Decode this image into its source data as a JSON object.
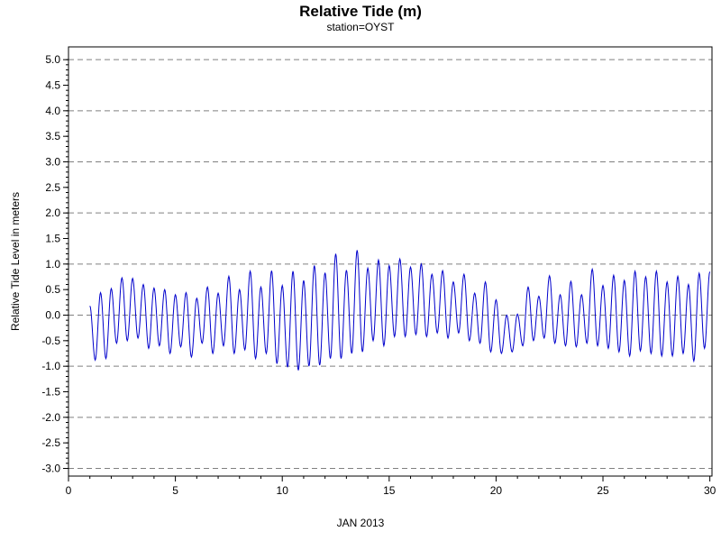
{
  "chart_data": {
    "type": "line",
    "title": "Relative Tide (m)",
    "subtitle": "station=OYST",
    "xlabel": "JAN 2013",
    "ylabel": "Relative Tide Level in meters",
    "xlim": [
      0,
      30.1
    ],
    "ylim": [
      -3.15,
      5.25
    ],
    "x_ticks": [
      0,
      5,
      10,
      15,
      20,
      25,
      30
    ],
    "y_ticks": [
      5.0,
      4.5,
      4.0,
      3.5,
      3.0,
      2.5,
      2.0,
      1.5,
      1.0,
      0.5,
      0.0,
      -0.5,
      -1.0,
      -1.5,
      -2.0,
      -2.5,
      -3.0
    ],
    "y_tick_labels": [
      "5.0",
      "4.5",
      "4.0",
      "3.5",
      "3.0",
      "2.5",
      "2.0",
      "1.5",
      "1.0",
      "0.5",
      "0.0",
      "-0.5",
      "-1.0",
      "-1.5",
      "-2.0",
      "-2.5",
      "-3.0"
    ],
    "y_gridlines": [
      5.0,
      4.0,
      3.0,
      2.0,
      1.0,
      0.0,
      -1.0,
      -2.0,
      -3.0
    ],
    "grid": "horizontal dashed at integer levels",
    "series_color": "#0000cc",
    "series": [
      {
        "peaks": [
          [
            1.0,
            0.18
          ],
          [
            1.5,
            0.44
          ],
          [
            2.0,
            0.52
          ],
          [
            2.5,
            0.73
          ],
          [
            3.0,
            0.72
          ],
          [
            3.5,
            0.6
          ],
          [
            4.0,
            0.53
          ],
          [
            4.5,
            0.5
          ],
          [
            5.0,
            0.4
          ],
          [
            5.5,
            0.44
          ],
          [
            6.0,
            0.33
          ],
          [
            6.5,
            0.55
          ],
          [
            7.0,
            0.43
          ],
          [
            7.5,
            0.76
          ],
          [
            8.0,
            0.5
          ],
          [
            8.5,
            0.86
          ],
          [
            9.0,
            0.55
          ],
          [
            9.5,
            0.87
          ],
          [
            10.0,
            0.58
          ],
          [
            10.5,
            0.86
          ],
          [
            11.0,
            0.68
          ],
          [
            11.5,
            0.97
          ],
          [
            12.0,
            0.83
          ],
          [
            12.5,
            1.2
          ],
          [
            13.0,
            0.88
          ],
          [
            13.5,
            1.27
          ],
          [
            14.0,
            0.92
          ],
          [
            14.5,
            1.08
          ],
          [
            15.0,
            0.97
          ],
          [
            15.5,
            1.1
          ],
          [
            16.0,
            0.94
          ],
          [
            16.5,
            1.0
          ],
          [
            17.0,
            0.8
          ],
          [
            17.5,
            0.87
          ],
          [
            18.0,
            0.65
          ],
          [
            18.5,
            0.8
          ],
          [
            19.0,
            0.43
          ],
          [
            19.5,
            0.65
          ],
          [
            20.0,
            0.3
          ],
          [
            20.5,
            0.0
          ],
          [
            21.0,
            0.02
          ],
          [
            21.5,
            0.55
          ],
          [
            22.0,
            0.37
          ],
          [
            22.5,
            0.77
          ],
          [
            23.0,
            0.4
          ],
          [
            23.5,
            0.66
          ],
          [
            24.0,
            0.4
          ],
          [
            24.5,
            0.9
          ],
          [
            25.0,
            0.58
          ],
          [
            25.5,
            0.78
          ],
          [
            26.0,
            0.68
          ],
          [
            26.5,
            0.86
          ],
          [
            27.0,
            0.75
          ],
          [
            27.5,
            0.86
          ],
          [
            28.0,
            0.65
          ],
          [
            28.5,
            0.76
          ],
          [
            29.0,
            0.6
          ],
          [
            29.5,
            0.82
          ],
          [
            30.0,
            0.85
          ]
        ],
        "troughs": [
          [
            1.25,
            -0.88
          ],
          [
            1.75,
            -0.85
          ],
          [
            2.25,
            -0.55
          ],
          [
            2.75,
            -0.5
          ],
          [
            3.25,
            -0.45
          ],
          [
            3.75,
            -0.65
          ],
          [
            4.25,
            -0.6
          ],
          [
            4.75,
            -0.75
          ],
          [
            5.25,
            -0.62
          ],
          [
            5.75,
            -0.82
          ],
          [
            6.25,
            -0.55
          ],
          [
            6.75,
            -0.75
          ],
          [
            7.25,
            -0.6
          ],
          [
            7.75,
            -0.75
          ],
          [
            8.25,
            -0.68
          ],
          [
            8.75,
            -0.85
          ],
          [
            9.25,
            -0.75
          ],
          [
            9.75,
            -0.95
          ],
          [
            10.25,
            -1.02
          ],
          [
            10.75,
            -1.08
          ],
          [
            11.25,
            -1.0
          ],
          [
            11.75,
            -0.98
          ],
          [
            12.25,
            -0.85
          ],
          [
            12.75,
            -0.85
          ],
          [
            13.25,
            -0.75
          ],
          [
            13.75,
            -0.72
          ],
          [
            14.25,
            -0.5
          ],
          [
            14.75,
            -0.6
          ],
          [
            15.25,
            -0.42
          ],
          [
            15.75,
            -0.42
          ],
          [
            16.25,
            -0.38
          ],
          [
            16.75,
            -0.42
          ],
          [
            17.25,
            -0.35
          ],
          [
            17.75,
            -0.45
          ],
          [
            18.25,
            -0.35
          ],
          [
            18.75,
            -0.5
          ],
          [
            19.25,
            -0.55
          ],
          [
            19.75,
            -0.72
          ],
          [
            20.25,
            -0.75
          ],
          [
            20.75,
            -0.72
          ],
          [
            21.25,
            -0.6
          ],
          [
            21.75,
            -0.5
          ],
          [
            22.25,
            -0.45
          ],
          [
            22.75,
            -0.55
          ],
          [
            23.25,
            -0.6
          ],
          [
            23.75,
            -0.62
          ],
          [
            24.25,
            -0.55
          ],
          [
            24.75,
            -0.6
          ],
          [
            25.25,
            -0.65
          ],
          [
            25.75,
            -0.72
          ],
          [
            26.25,
            -0.8
          ],
          [
            26.75,
            -0.7
          ],
          [
            27.25,
            -0.75
          ],
          [
            27.75,
            -0.8
          ],
          [
            28.25,
            -0.8
          ],
          [
            28.75,
            -0.75
          ],
          [
            29.25,
            -0.9
          ],
          [
            29.75,
            -0.65
          ]
        ]
      }
    ]
  }
}
